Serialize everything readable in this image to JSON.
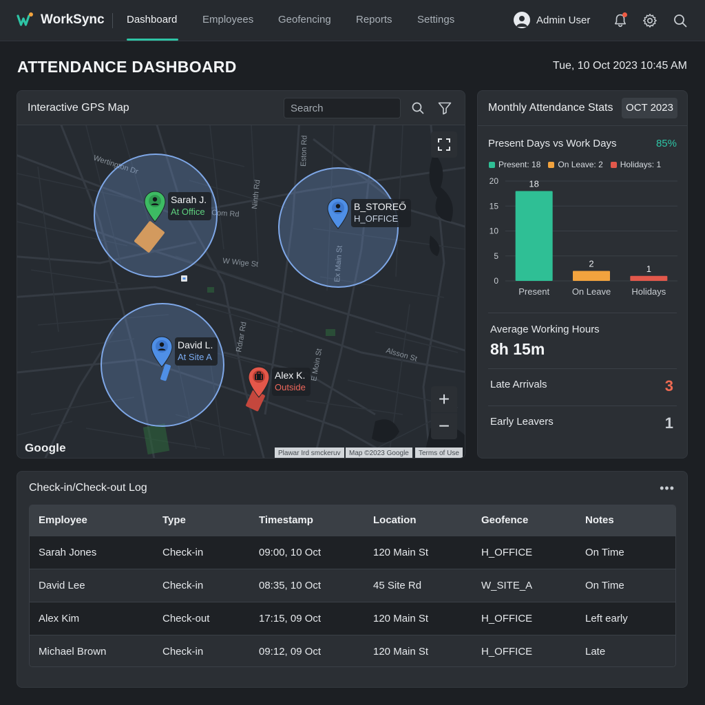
{
  "app": {
    "name": "WorkSync"
  },
  "nav": {
    "items": [
      {
        "label": "Dashboard",
        "active": true
      },
      {
        "label": "Employees"
      },
      {
        "label": "Geofencing"
      },
      {
        "label": "Reports"
      },
      {
        "label": "Settings"
      }
    ]
  },
  "user": {
    "name": "Admin User",
    "icons": [
      "bell-icon",
      "gear-icon",
      "search-icon"
    ]
  },
  "page": {
    "title": "ATTENDANCE DASHBOARD",
    "datetime": "Tue, 10 Oct 2023 10:45 AM"
  },
  "map": {
    "title": "Interactive GPS Map",
    "search_placeholder": "Search",
    "markers": [
      {
        "name": "Sarah J.",
        "status": "At Office",
        "color": "#3dbb63",
        "status_color": "#5fd37f"
      },
      {
        "name": "B_STOREŐ",
        "status": "H_OFFICE",
        "color": "#4f8fe6",
        "status_color": "#c9d4e3"
      },
      {
        "name": "David L.",
        "status": "At Site A",
        "color": "#4f8fe6",
        "status_color": "#7cadf3"
      },
      {
        "name": "Alex K.",
        "status": "Outside",
        "color": "#e3574a",
        "status_color": "#f0685c"
      }
    ],
    "street_labels": [
      "Wertington Dr",
      "W Wige St",
      "Alsson St",
      "Com Rd",
      "Ninth Rd",
      "E Moin St",
      "Ex Main St",
      "Eston Rd",
      "Rdrar Rd"
    ],
    "zoom_in": "+",
    "zoom_out": "−",
    "provider": "Google",
    "attribution": [
      "Plawar Ird smckeruv",
      "Map ©2023 Google",
      "Terms of Use"
    ]
  },
  "stats": {
    "title": "Monthly Attendance Stats",
    "period": "OCT 2023",
    "subtitle": "Present Days vs Work Days",
    "percent": "85%",
    "legend": [
      {
        "label": "Present: 18",
        "color": "#2fbf95"
      },
      {
        "label": "On Leave: 2",
        "color": "#f2a33e"
      },
      {
        "label": "Holidays: 1",
        "color": "#e2584b"
      }
    ],
    "avg_hours_label": "Average Working Hours",
    "avg_hours_value": "8h 15m",
    "late_label": "Late Arrivals",
    "late_value": "3",
    "early_label": "Early Leavers",
    "early_value": "1",
    "colors": {
      "accent": "#2ec4a5",
      "late": "#ef6a52"
    }
  },
  "chart_data": {
    "type": "bar",
    "categories": [
      "Present",
      "On Leave",
      "Holidays"
    ],
    "values": [
      18,
      2,
      1
    ],
    "colors": [
      "#2fbf95",
      "#f2a33e",
      "#e2584b"
    ],
    "yticks": [
      0,
      5,
      10,
      15,
      20
    ],
    "ylim": [
      0,
      20
    ],
    "grid": true
  },
  "log": {
    "title": "Check-in/Check-out Log",
    "columns": [
      "Employee",
      "Type",
      "Timestamp",
      "Location",
      "Geofence",
      "Notes"
    ],
    "rows": [
      [
        "Sarah Jones",
        "Check-in",
        "09:00, 10 Oct",
        "120 Main St",
        "H_OFFICE",
        "On Time"
      ],
      [
        "David Lee",
        "Check-in",
        "08:35, 10 Oct",
        "45 Site Rd",
        "W_SITE_A",
        "On Time"
      ],
      [
        "Alex Kim",
        "Check-out",
        "17:15, 09 Oct",
        "120 Main St",
        "H_OFFICE",
        "Left early"
      ],
      [
        "Michael Brown",
        "Check-in",
        "09:12, 09 Oct",
        "120 Main St",
        "H_OFFICE",
        "Late"
      ]
    ]
  }
}
